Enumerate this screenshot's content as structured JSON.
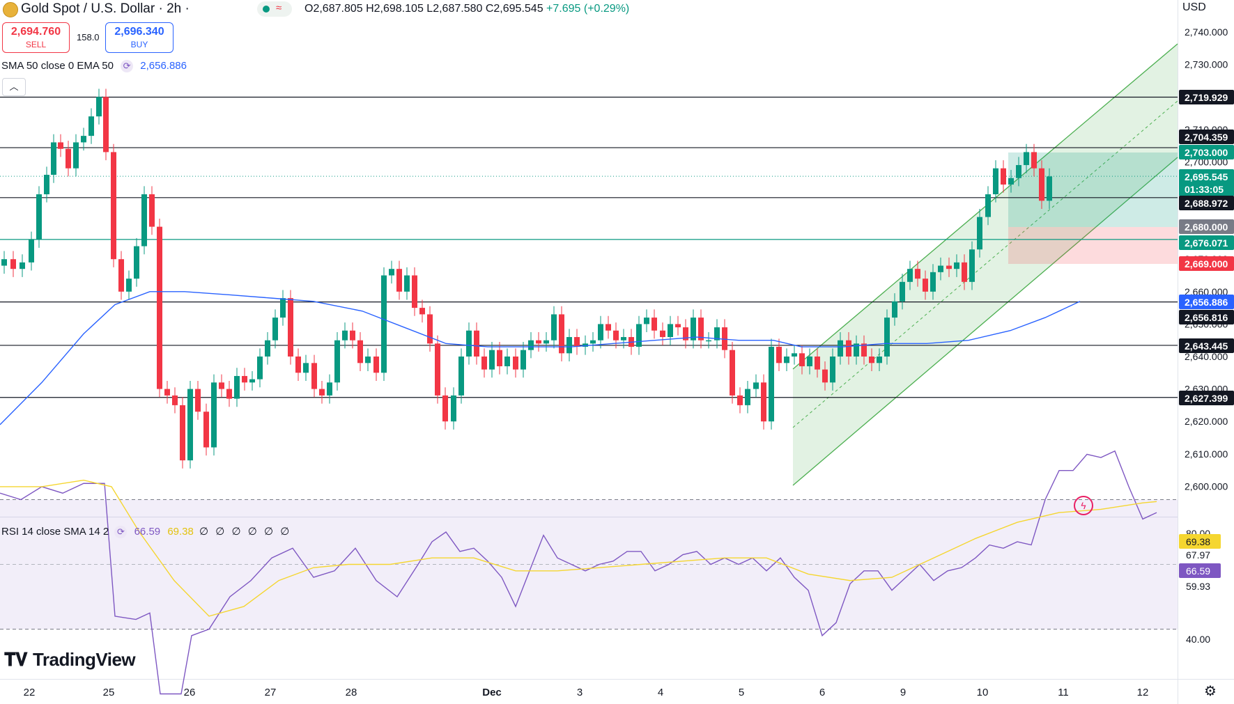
{
  "header": {
    "symbol_title": "Gold Spot / U.S. Dollar · 2h ·",
    "ohlc": {
      "open_label": "O",
      "open": "2,687.805",
      "high_label": "H",
      "high": "2,698.105",
      "low_label": "L",
      "low": "2,687.580",
      "close_label": "C",
      "close": "2,695.545",
      "change": "+7.695 (+0.29%)"
    }
  },
  "trade": {
    "sell_price": "2,694.760",
    "sell_label": "SELL",
    "spread": "158.0",
    "buy_price": "2,696.340",
    "buy_label": "BUY"
  },
  "indicator": {
    "label": "SMA 50 close 0 EMA 50",
    "value": "2,656.886"
  },
  "rsi": {
    "label": "RSI 14 close SMA 14 2",
    "rsi_value": "66.59",
    "sma_value": "69.38",
    "zeros": "∅ ∅ ∅ ∅ ∅ ∅",
    "axis_ticks": [
      "80.00",
      "67.97",
      "59.93",
      "40.00"
    ],
    "tag_sma": "69.38",
    "tag_rsi": "66.59"
  },
  "axis": {
    "currency": "USD",
    "price_ticks": [
      "2,740.000",
      "2,730.000",
      "2,720.000",
      "2,710.000",
      "2,700.000",
      "2,690.000",
      "2,680.000",
      "2,670.000",
      "2,660.000",
      "2,650.000",
      "2,640.000",
      "2,630.000",
      "2,620.000",
      "2,610.000",
      "2,600.000"
    ],
    "price_tags": [
      {
        "text": "2,719.929",
        "bg": "#131722"
      },
      {
        "text": "2,704.359",
        "bg": "#131722"
      },
      {
        "text": "2,703.000",
        "bg": "#089981"
      },
      {
        "text": "2,695.545",
        "bg": "#089981"
      },
      {
        "text": "01:33:05",
        "bg": "#089981"
      },
      {
        "text": "2,688.972",
        "bg": "#131722"
      },
      {
        "text": "2,680.000",
        "bg": "#787b86"
      },
      {
        "text": "2,676.071",
        "bg": "#089981"
      },
      {
        "text": "2,669.000",
        "bg": "#f23645"
      },
      {
        "text": "2,656.886",
        "bg": "#2962ff"
      },
      {
        "text": "2,656.816",
        "bg": "#131722"
      },
      {
        "text": "2,643.445",
        "bg": "#131722"
      },
      {
        "text": "2,627.399",
        "bg": "#131722"
      }
    ],
    "time_ticks": [
      "22",
      "25",
      "26",
      "27",
      "28",
      "Dec",
      "3",
      "4",
      "5",
      "6",
      "9",
      "10",
      "11",
      "12"
    ]
  },
  "branding": {
    "logo_text": "TradingView"
  },
  "colors": {
    "up": "#089981",
    "down": "#f23645",
    "ema": "#2962ff",
    "rsi": "#7e57c2",
    "rsi_sma": "#f5d630",
    "channel": "#4caf50",
    "position_profit": "#089981",
    "position_loss": "#f23645"
  },
  "chart_data": {
    "type": "candlestick",
    "series": [
      {
        "name": "Gold Spot / U.S. Dollar",
        "values": []
      }
    ],
    "horizontal_levels": [
      2719.929,
      2704.359,
      2688.972,
      2676.071,
      2656.816,
      2643.445,
      2627.399
    ],
    "price_range": [
      2600,
      2740
    ]
  },
  "icons": {
    "settings": "gear-icon",
    "collapse": "chevron-up-icon",
    "ai": "lightning-icon"
  }
}
